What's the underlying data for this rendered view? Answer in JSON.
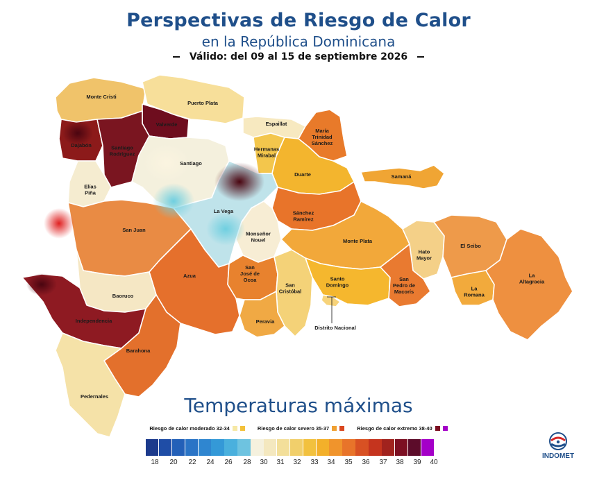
{
  "header": {
    "title": "Perspectivas de Riesgo de Calor",
    "subtitle": "en la República Dominicana",
    "validity": "Válido: del 09  al 15 de septiembre 2026"
  },
  "map": {
    "provinces": [
      {
        "name": "Monte Cristi",
        "label": "Monte Cristi",
        "fill": "#f0c36a"
      },
      {
        "name": "Puerto Plata",
        "label": "Puerto Plata",
        "fill": "#f7df9a"
      },
      {
        "name": "Dajabón",
        "label": "Dajabón",
        "fill": "#8c1a1a"
      },
      {
        "name": "Valverde",
        "label": "Valverde",
        "fill": "#6e0d1e"
      },
      {
        "name": "Santiago Rodríguez",
        "label": "Santiago Rodríguez",
        "fill": "#7a1520"
      },
      {
        "name": "Santiago",
        "label": "Santiago",
        "fill": "#f4f0dd"
      },
      {
        "name": "Espaillat",
        "label": "Espaillat",
        "fill": "#f7e9c0"
      },
      {
        "name": "María Trinidad Sánchez",
        "label": "María Trinidad Sánchez",
        "fill": "#e87a2a"
      },
      {
        "name": "Hermanas Mirabal",
        "label": "Hermanas Mirabal",
        "fill": "#f3c64c"
      },
      {
        "name": "Duarte",
        "label": "Duarte",
        "fill": "#f3b52e"
      },
      {
        "name": "Samaná",
        "label": "Samaná",
        "fill": "#f0a534"
      },
      {
        "name": "Elías Piña",
        "label": "Elías Piña",
        "fill": "#f5ecd0"
      },
      {
        "name": "La Vega",
        "label": "La Vega",
        "fill": "#bfe3ea"
      },
      {
        "name": "Sánchez Ramírez",
        "label": "Sánchez Ramírez",
        "fill": "#e8742a"
      },
      {
        "name": "San Juan",
        "label": "San Juan",
        "fill": "#e98b44"
      },
      {
        "name": "Monseñor Nouel",
        "label": "Monseñor Nouel",
        "fill": "#f7edd4"
      },
      {
        "name": "Monte Plata",
        "label": "Monte Plata",
        "fill": "#f2a83a"
      },
      {
        "name": "Hato Mayor",
        "label": "Hato Mayor",
        "fill": "#f4d088"
      },
      {
        "name": "El Seibo",
        "label": "El Seibo",
        "fill": "#ee9a4a"
      },
      {
        "name": "Azua",
        "label": "Azua",
        "fill": "#e5702c"
      },
      {
        "name": "San José de Ocoa",
        "label": "San José de Ocoa",
        "fill": "#e8822e"
      },
      {
        "name": "San Cristóbal",
        "label": "San Cristóbal",
        "fill": "#f4d278"
      },
      {
        "name": "Santo Domingo",
        "label": "Santo Domingo",
        "fill": "#f5b72e"
      },
      {
        "name": "San Pedro de Macorís",
        "label": "San Pedro de Macorís",
        "fill": "#e97a30"
      },
      {
        "name": "La Romana",
        "label": "La Romana",
        "fill": "#f2aa3c"
      },
      {
        "name": "La Altagracia",
        "label": "La Altagracia",
        "fill": "#ee9040"
      },
      {
        "name": "Baoruco",
        "label": "Baoruco",
        "fill": "#f5e7c4"
      },
      {
        "name": "Independencia",
        "label": "Independencia",
        "fill": "#8e1a22"
      },
      {
        "name": "Peravia",
        "label": "Peravia",
        "fill": "#f0a944"
      },
      {
        "name": "Distrito Nacional",
        "label": "Distrito Nacional",
        "fill": "#f7d37a"
      },
      {
        "name": "Barahona",
        "label": "Barahona",
        "fill": "#e3702c"
      },
      {
        "name": "Pedernales",
        "label": "Pedernales",
        "fill": "#f5e2a8"
      }
    ]
  },
  "legend": {
    "title": "Temperaturas máximas",
    "risk_levels": [
      {
        "label": "Riesgo de calor moderado 32-34",
        "colors": [
          "#f6e8a4",
          "#f3c13a"
        ]
      },
      {
        "label": "Riesgo de calor severo 35-37",
        "colors": [
          "#f0a032",
          "#d9471f"
        ]
      },
      {
        "label": "Riesgo de calor extremo  38-40",
        "colors": [
          "#7c0f22",
          "#a400c8"
        ]
      }
    ],
    "scale": {
      "ticks": [
        "18",
        "20",
        "22",
        "24",
        "26",
        "28",
        "30",
        "31",
        "32",
        "33",
        "34",
        "35",
        "36",
        "37",
        "38",
        "39",
        "40"
      ],
      "colors": [
        "#1c3a8c",
        "#1f4da6",
        "#2360b8",
        "#2a74c6",
        "#2f86d0",
        "#3499d7",
        "#4ab0dd",
        "#6ec3e0",
        "#f5f1de",
        "#f4e8bf",
        "#f3df9a",
        "#f1cf6b",
        "#f2c13e",
        "#f3b02a",
        "#f0942c",
        "#e8742a",
        "#d85123",
        "#c5341e",
        "#a1231e",
        "#7c0f22",
        "#5c0c2a",
        "#a400c8"
      ]
    }
  },
  "brand": {
    "name": "INDOMET",
    "colors": {
      "primary": "#1f4f8a",
      "accent": "#d62828"
    }
  }
}
